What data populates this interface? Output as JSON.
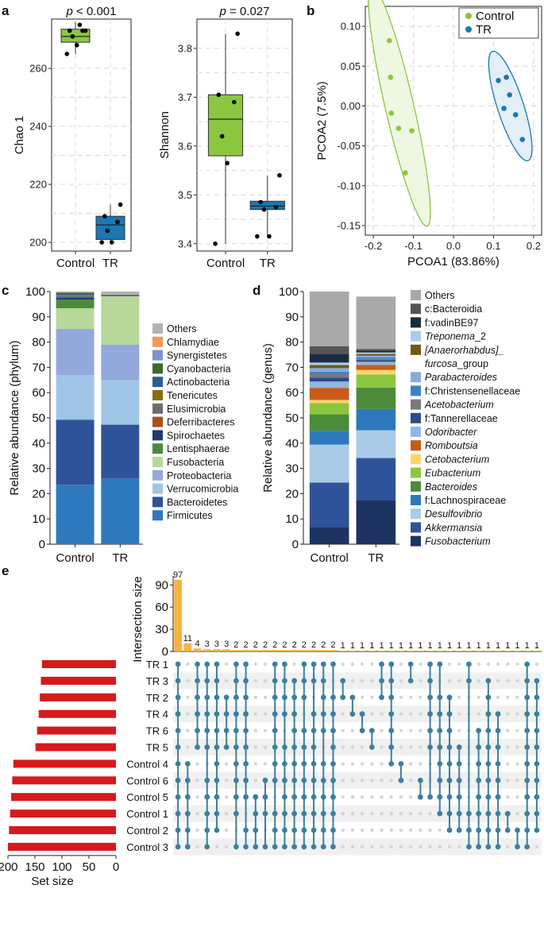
{
  "panels": {
    "a": "a",
    "b": "b",
    "c": "c",
    "d": "d",
    "e": "e"
  },
  "colors": {
    "control": "#8cc63f",
    "tr": "#1a78b4",
    "upset_bar": "#f5b342",
    "set_bar": "#d7191c",
    "dot": "#3b7f9e",
    "dot_empty": "#d5d5d5"
  },
  "chart_data": [
    {
      "id": "a1",
      "type": "box",
      "title_p": "p",
      "title_rest": " < 0.001",
      "xlabel": "",
      "ylabel": "Chao 1",
      "ylim": [
        197,
        277
      ],
      "yticks": [
        200,
        220,
        240,
        260
      ],
      "yticklabels": [
        "200",
        "220",
        "240",
        "260"
      ],
      "categories": [
        "Control",
        "TR"
      ],
      "boxes": [
        {
          "group": "Control",
          "min": 265,
          "q1": 269,
          "median": 271,
          "q3": 273.5,
          "max": 276,
          "points": [
            265,
            268,
            271,
            273,
            273,
            273,
            275
          ]
        },
        {
          "group": "TR",
          "min": 200,
          "q1": 201,
          "median": 206,
          "q3": 209,
          "max": 213,
          "points": [
            200,
            200,
            204,
            207,
            209,
            213
          ]
        }
      ]
    },
    {
      "id": "a2",
      "type": "box",
      "title_p": "p",
      "title_rest": " = 0.027",
      "xlabel": "",
      "ylabel": "Shannon",
      "ylim": [
        3.385,
        3.86
      ],
      "yticks": [
        3.4,
        3.5,
        3.6,
        3.7,
        3.8
      ],
      "yticklabels": [
        "3.4",
        "3.5",
        "3.6",
        "3.7",
        "3.8"
      ],
      "categories": [
        "Control",
        "TR"
      ],
      "boxes": [
        {
          "group": "Control",
          "min": 3.4,
          "q1": 3.58,
          "median": 3.655,
          "q3": 3.705,
          "max": 3.83,
          "points": [
            3.4,
            3.565,
            3.62,
            3.69,
            3.705,
            3.83
          ]
        },
        {
          "group": "TR",
          "min": 3.415,
          "q1": 3.47,
          "median": 3.477,
          "q3": 3.487,
          "max": 3.54,
          "points": [
            3.415,
            3.415,
            3.47,
            3.475,
            3.485,
            3.54
          ]
        }
      ]
    },
    {
      "id": "b",
      "type": "scatter",
      "xlabel": "PCOA1 (83.86%)",
      "ylabel": "PCOA2 (7.5%)",
      "xlim": [
        -0.22,
        0.22
      ],
      "ylim": [
        -0.162,
        0.125
      ],
      "xticks": [
        -0.2,
        -0.1,
        0.0,
        0.1,
        0.2
      ],
      "xticklabels": [
        "-0.2",
        "-0.1",
        "0.0",
        "0.1",
        "0.2"
      ],
      "yticks": [
        -0.15,
        -0.1,
        -0.05,
        0.0,
        0.05,
        0.1
      ],
      "yticklabels": [
        "-0.15",
        "-0.10",
        "-0.05",
        "0.00",
        "0.05",
        "0.10"
      ],
      "legend": [
        "Control",
        "TR"
      ],
      "series": [
        {
          "name": "Control",
          "x": [
            -0.16,
            -0.157,
            -0.155,
            -0.137,
            -0.12,
            -0.104
          ],
          "y": [
            0.082,
            0.036,
            -0.009,
            -0.028,
            -0.084,
            -0.031
          ]
        },
        {
          "name": "TR",
          "x": [
            0.112,
            0.132,
            0.14,
            0.126,
            0.155,
            0.172
          ],
          "y": [
            0.032,
            0.036,
            0.014,
            -0.003,
            -0.011,
            -0.042
          ]
        }
      ]
    },
    {
      "id": "c",
      "type": "stacked-bar",
      "xlabel": "",
      "ylabel": "Relative abundance (phylum)",
      "ylim": [
        0,
        100
      ],
      "yticks": [
        0,
        10,
        20,
        30,
        40,
        50,
        60,
        70,
        80,
        90,
        100
      ],
      "categories": [
        "Control",
        "TR"
      ],
      "series": [
        {
          "name": "Firmicutes",
          "color": "#2e79bd",
          "values": [
            23.5,
            26
          ]
        },
        {
          "name": "Bacteroidetes",
          "color": "#2f539a",
          "values": [
            25.8,
            21.3
          ]
        },
        {
          "name": "Verrucomicrobia",
          "color": "#9fc6e6",
          "values": [
            17.6,
            17.6
          ]
        },
        {
          "name": "Proteobacteria",
          "color": "#93a8dd",
          "values": [
            18.3,
            14.1
          ]
        },
        {
          "name": "Fusobacteria",
          "color": "#b7d99a",
          "values": [
            8.2,
            19.1
          ]
        },
        {
          "name": "Lentisphaerae",
          "color": "#4b8b39",
          "values": [
            3.4,
            0
          ]
        },
        {
          "name": "Spirochaetes",
          "color": "#1f3b70",
          "values": [
            0.8,
            0
          ]
        },
        {
          "name": "Deferribacteres",
          "color": "#a8521a",
          "values": [
            0.2,
            0
          ]
        },
        {
          "name": "Elusimicrobia",
          "color": "#6d6d6d",
          "values": [
            0.6,
            0.7
          ]
        },
        {
          "name": "Tenericutes",
          "color": "#8a6d10",
          "values": [
            0.3,
            0
          ]
        },
        {
          "name": "Actinobacteria",
          "color": "#2a5f96",
          "values": [
            0.5,
            0
          ]
        },
        {
          "name": "Cyanobacteria",
          "color": "#3e6b2c",
          "values": [
            0.4,
            0
          ]
        },
        {
          "name": "Synergistetes",
          "color": "#7f93cc",
          "values": [
            0.2,
            0
          ]
        },
        {
          "name": "Chlamydiae",
          "color": "#f09a5a",
          "values": [
            0.1,
            0
          ]
        },
        {
          "name": "Others",
          "color": "#b3b3b3",
          "values": [
            0.1,
            1.2
          ]
        }
      ]
    },
    {
      "id": "d",
      "type": "stacked-bar",
      "xlabel": "",
      "ylabel": "Relative abundance (genus)",
      "ylim": [
        0,
        100
      ],
      "yticks": [
        0,
        10,
        20,
        30,
        40,
        50,
        60,
        70,
        80,
        90,
        100
      ],
      "categories": [
        "Control",
        "TR"
      ],
      "series": [
        {
          "name": "Fusobacterium",
          "italic": true,
          "color": "#1d3361",
          "values": [
            6.8,
            17.5
          ]
        },
        {
          "name": "Akkermansia",
          "italic": true,
          "color": "#2f539a",
          "values": [
            17.6,
            16.6
          ]
        },
        {
          "name": "Desulfovibrio",
          "italic": true,
          "color": "#a9cbe8",
          "values": [
            15,
            11
          ]
        },
        {
          "name": "f:Lachnospiraceae",
          "italic": false,
          "color": "#2e79bd",
          "values": [
            5.5,
            8.4
          ]
        },
        {
          "name": "Bacteroides",
          "italic": true,
          "color": "#4b8b39",
          "values": [
            6.5,
            8.5
          ]
        },
        {
          "name": "Eubacterium",
          "italic": true,
          "color": "#8cc63f",
          "values": [
            4.5,
            5.2
          ]
        },
        {
          "name": "Cetobacterium",
          "italic": true,
          "color": "#fcd56a",
          "values": [
            1.2,
            1.8
          ]
        },
        {
          "name": "Romboutsia",
          "italic": true,
          "color": "#c95a1a",
          "values": [
            4.8,
            2
          ]
        },
        {
          "name": "Odoribacter",
          "italic": true,
          "color": "#8fb8e0",
          "values": [
            2.5,
            1.2
          ]
        },
        {
          "name": "f:Tannerellaceae",
          "italic": false,
          "color": "#2c4a8c",
          "values": [
            1.5,
            0.6
          ]
        },
        {
          "name": "Acetobacterium",
          "italic": true,
          "color": "#7a7a7a",
          "values": [
            1.4,
            0.6
          ]
        },
        {
          "name": "f:Christensenellaceae",
          "italic": false,
          "color": "#3c82c6",
          "values": [
            1.0,
            0.5
          ]
        },
        {
          "name": "Parabacteroides",
          "italic": true,
          "color": "#8fa9de",
          "values": [
            1.4,
            0.7
          ]
        },
        {
          "name": "[Anaerorhabdus]_furcosa_group",
          "italic": false,
          "color": "#6b5a12",
          "values": [
            1.2,
            0.7
          ]
        },
        {
          "name": "Treponema_2",
          "italic": false,
          "color": "#a8cde9",
          "values": [
            1.0,
            0.6
          ]
        },
        {
          "name": "f:vadinBE97",
          "italic": false,
          "color": "#1a2a40",
          "values": [
            3.5,
            0.7
          ]
        },
        {
          "name": "c:Bacteroidia",
          "italic": false,
          "color": "#555555",
          "values": [
            3.0,
            0.6
          ]
        },
        {
          "name": "Others",
          "italic": false,
          "color": "#a9a9a9",
          "values": [
            21.6,
            20.8
          ]
        }
      ],
      "legend_lines": [
        {
          "text": "Others",
          "color_of": "Others"
        },
        {
          "text": "c:Bacteroidia",
          "color_of": "c:Bacteroidia"
        },
        {
          "text": "f:vadinBE97",
          "color_of": "f:vadinBE97"
        },
        {
          "italic": "Treponema",
          "plain": "_2",
          "color_of": "Treponema_2"
        },
        {
          "italic": "[Anaerorhabdus]_",
          "plain": "",
          "color_of": "[Anaerorhabdus]_furcosa_group"
        },
        {
          "italic": "furcosa",
          "plain": "_group",
          "nobox": true
        },
        {
          "italic": "Parabacteroides",
          "color_of": "Parabacteroides"
        },
        {
          "text": "f:Christensenellaceae",
          "color_of": "f:Christensenellaceae"
        },
        {
          "italic": "Acetobacterium",
          "color_of": "Acetobacterium"
        },
        {
          "text": "f:Tannerellaceae",
          "color_of": "f:Tannerellaceae"
        },
        {
          "italic": "Odoribacter",
          "color_of": "Odoribacter"
        },
        {
          "italic": "Romboutsia",
          "color_of": "Romboutsia"
        },
        {
          "italic": "Cetobacterium",
          "color_of": "Cetobacterium"
        },
        {
          "italic": "Eubacterium",
          "color_of": "Eubacterium"
        },
        {
          "italic": "Bacteroides",
          "color_of": "Bacteroides"
        },
        {
          "text": "f:Lachnospiraceae",
          "color_of": "f:Lachnospiraceae"
        },
        {
          "italic": "Desulfovibrio",
          "color_of": "Desulfovibrio"
        },
        {
          "italic": "Akkermansia",
          "color_of": "Akkermansia"
        },
        {
          "italic": "Fusobacterium",
          "color_of": "Fusobacterium"
        }
      ]
    },
    {
      "id": "e",
      "type": "upset",
      "ylabel": "Intersection size",
      "xlabel_sets": "Set size",
      "ylim": [
        0,
        100
      ],
      "yticks": [
        0,
        30,
        60,
        90
      ],
      "set_size_ticks": [
        200,
        150,
        100,
        50,
        0
      ],
      "set_size_max": 200,
      "sets": [
        {
          "name": "TR 1",
          "size": 137
        },
        {
          "name": "TR 3",
          "size": 139
        },
        {
          "name": "TR 2",
          "size": 141
        },
        {
          "name": "TR 4",
          "size": 143
        },
        {
          "name": "TR 6",
          "size": 146
        },
        {
          "name": "TR 5",
          "size": 149
        },
        {
          "name": "Control 4",
          "size": 190
        },
        {
          "name": "Control 6",
          "size": 192
        },
        {
          "name": "Control 5",
          "size": 194
        },
        {
          "name": "Control 1",
          "size": 196
        },
        {
          "name": "Control 2",
          "size": 198
        },
        {
          "name": "Control 3",
          "size": 200
        }
      ],
      "intersection_sizes": [
        97,
        11,
        4,
        3,
        3,
        3,
        2,
        2,
        2,
        2,
        2,
        2,
        2,
        2,
        2,
        2,
        2,
        1,
        1,
        1,
        1,
        1,
        1,
        1,
        1,
        1,
        1,
        1,
        1,
        1,
        1,
        1,
        1,
        1,
        1,
        1,
        1,
        1
      ],
      "intersections": [
        [
          0,
          1,
          2,
          3,
          4,
          5,
          6,
          7,
          8,
          9,
          10,
          11
        ],
        [
          6,
          7,
          8,
          9,
          10,
          11
        ],
        [
          0,
          1,
          2,
          3,
          4,
          5
        ],
        [
          0,
          1,
          2,
          3,
          4,
          5,
          7,
          8,
          9,
          10,
          11
        ],
        [
          0,
          1,
          2,
          3,
          4,
          5,
          6,
          7,
          8,
          9,
          10
        ],
        [
          2,
          3,
          4,
          5
        ],
        [
          0,
          1,
          2,
          3,
          4,
          5,
          6,
          7,
          8,
          9,
          11
        ],
        [
          0,
          1,
          2,
          3,
          4,
          5,
          6,
          7,
          8,
          10,
          11
        ],
        [
          8,
          9,
          10,
          11
        ],
        [
          7,
          8,
          9,
          11
        ],
        [
          0,
          1,
          2,
          3,
          4,
          5,
          6,
          7,
          9,
          10,
          11
        ],
        [
          0,
          1,
          2,
          3,
          5,
          6,
          7,
          8,
          9,
          10,
          11
        ],
        [
          1,
          2,
          3,
          4,
          5,
          6,
          7,
          8,
          9,
          10,
          11
        ],
        [
          0,
          1,
          2,
          4,
          5,
          6,
          7,
          8,
          9,
          10,
          11
        ],
        [
          0,
          1,
          3,
          4,
          5,
          6,
          7,
          8,
          9,
          10,
          11
        ],
        [
          0,
          1,
          2,
          3,
          4,
          6,
          7,
          8,
          9,
          10,
          11
        ],
        [
          0,
          2,
          3,
          4,
          5,
          6,
          7,
          8,
          9,
          10,
          11
        ],
        [
          1,
          2
        ],
        [
          2,
          3
        ],
        [
          3,
          4
        ],
        [
          4,
          5
        ],
        [
          0,
          1,
          2
        ],
        [
          0,
          1,
          2,
          3,
          4,
          5,
          6
        ],
        [
          6,
          7
        ],
        [
          0,
          1
        ],
        [
          7,
          8
        ],
        [
          0,
          1,
          2,
          3,
          4,
          5,
          8
        ],
        [
          0,
          2,
          3,
          4,
          5,
          6,
          7,
          8,
          9
        ],
        [
          2,
          3,
          4,
          5,
          6,
          7,
          8,
          9,
          10
        ],
        [
          5,
          6,
          7,
          8,
          9,
          10
        ],
        [
          0,
          1,
          9,
          10,
          11
        ],
        [
          4,
          5,
          6,
          7,
          8,
          9,
          10,
          11
        ],
        [
          1,
          2,
          3,
          4,
          5,
          6,
          7,
          8,
          9,
          10,
          11
        ],
        [
          3,
          4,
          5,
          6,
          7,
          8,
          9,
          10,
          11
        ],
        [
          9,
          10
        ],
        [
          10,
          11
        ],
        [
          0,
          1,
          2,
          3,
          4,
          5,
          6,
          7,
          8,
          9,
          10,
          11
        ],
        [
          1,
          2,
          3,
          4,
          5,
          6,
          7,
          8,
          9,
          10
        ]
      ]
    }
  ]
}
